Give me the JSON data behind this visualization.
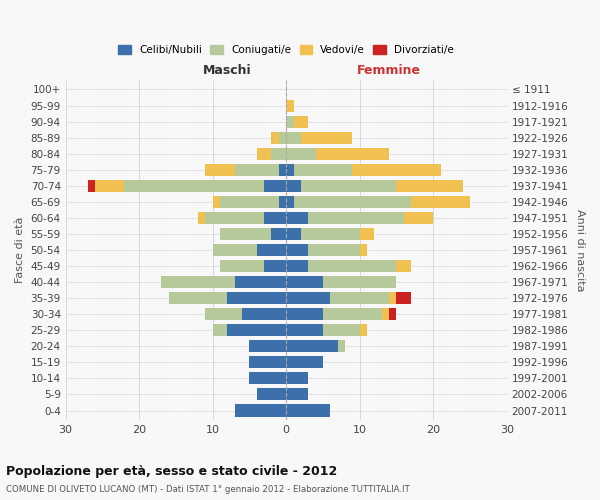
{
  "age_groups": [
    "0-4",
    "5-9",
    "10-14",
    "15-19",
    "20-24",
    "25-29",
    "30-34",
    "35-39",
    "40-44",
    "45-49",
    "50-54",
    "55-59",
    "60-64",
    "65-69",
    "70-74",
    "75-79",
    "80-84",
    "85-89",
    "90-94",
    "95-99",
    "100+"
  ],
  "birth_years": [
    "2007-2011",
    "2002-2006",
    "1997-2001",
    "1992-1996",
    "1987-1991",
    "1982-1986",
    "1977-1981",
    "1972-1976",
    "1967-1971",
    "1962-1966",
    "1957-1961",
    "1952-1956",
    "1947-1951",
    "1942-1946",
    "1937-1941",
    "1932-1936",
    "1927-1931",
    "1922-1926",
    "1917-1921",
    "1912-1916",
    "≤ 1911"
  ],
  "maschi": {
    "celibi": [
      7,
      4,
      5,
      5,
      5,
      8,
      6,
      8,
      7,
      3,
      4,
      2,
      3,
      1,
      3,
      1,
      0,
      0,
      0,
      0,
      0
    ],
    "coniugati": [
      0,
      0,
      0,
      0,
      0,
      2,
      5,
      8,
      10,
      6,
      6,
      7,
      8,
      8,
      19,
      6,
      2,
      1,
      0,
      0,
      0
    ],
    "vedovi": [
      0,
      0,
      0,
      0,
      0,
      0,
      0,
      0,
      0,
      0,
      0,
      0,
      1,
      1,
      4,
      4,
      2,
      1,
      0,
      0,
      0
    ],
    "divorziati": [
      0,
      0,
      0,
      0,
      0,
      0,
      0,
      0,
      0,
      0,
      0,
      0,
      0,
      0,
      1,
      0,
      0,
      0,
      0,
      0,
      0
    ]
  },
  "femmine": {
    "nubili": [
      6,
      3,
      3,
      5,
      7,
      5,
      5,
      6,
      5,
      3,
      3,
      2,
      3,
      1,
      2,
      1,
      0,
      0,
      0,
      0,
      0
    ],
    "coniugate": [
      0,
      0,
      0,
      0,
      1,
      5,
      8,
      8,
      10,
      12,
      7,
      8,
      13,
      16,
      13,
      8,
      4,
      2,
      1,
      0,
      0
    ],
    "vedove": [
      0,
      0,
      0,
      0,
      0,
      1,
      1,
      1,
      0,
      2,
      1,
      2,
      4,
      8,
      9,
      12,
      10,
      7,
      2,
      1,
      0
    ],
    "divorziate": [
      0,
      0,
      0,
      0,
      0,
      0,
      1,
      2,
      0,
      0,
      0,
      0,
      0,
      0,
      0,
      0,
      0,
      0,
      0,
      0,
      0
    ]
  },
  "color_celibi": "#3d6faa",
  "color_coniugati": "#b5c99a",
  "color_vedovi": "#f0c050",
  "color_divorziati": "#cc2222",
  "title": "Popolazione per età, sesso e stato civile - 2012",
  "subtitle": "COMUNE DI OLIVETO LUCANO (MT) - Dati ISTAT 1° gennaio 2012 - Elaborazione TUTTITALIA.IT",
  "xlabel_left": "Maschi",
  "xlabel_right": "Femmine",
  "ylabel_left": "Fasce di età",
  "ylabel_right": "Anni di nascita",
  "xlim": 30,
  "bg_color": "#f8f8f8",
  "grid_color": "#cccccc"
}
